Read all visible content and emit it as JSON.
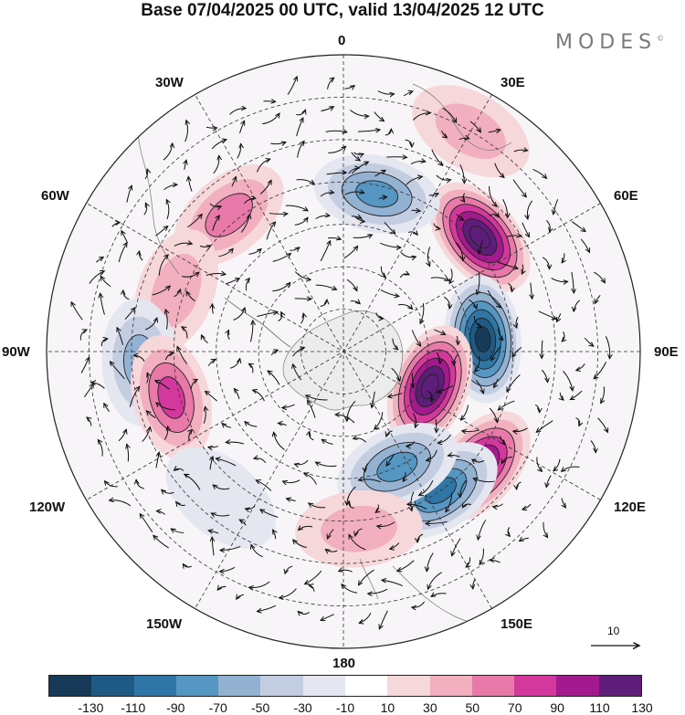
{
  "title": "Base 07/04/2025 00 UTC, valid 13/04/2025 12 UTC",
  "brand": "MODES",
  "brand_mark": "©",
  "longitude_labels": {
    "lon_0": "0",
    "lon_30e": "30E",
    "lon_60e": "60E",
    "lon_90e": "90E",
    "lon_120e": "120E",
    "lon_150e": "150E",
    "lon_180": "180",
    "lon_150w": "150W",
    "lon_120w": "120W",
    "lon_90w": "90W",
    "lon_60w": "60W",
    "lon_30w": "30W"
  },
  "reference_vector": "10",
  "colorbar": {
    "ticks": [
      "-130",
      "-110",
      "-90",
      "-70",
      "-50",
      "-30",
      "-10",
      "10",
      "30",
      "50",
      "70",
      "90",
      "110",
      "130"
    ],
    "colors": [
      "#173a58",
      "#1f5a85",
      "#2f76a6",
      "#5596c2",
      "#93b2d2",
      "#c3cde2",
      "#e4e6f0",
      "#ffffff",
      "#f6d7da",
      "#f1afbf",
      "#e879a9",
      "#d3389c",
      "#a31a8e",
      "#5e1d7a"
    ]
  },
  "map": {
    "projection": "south polar stereographic",
    "land_color": "#f0f0f0",
    "anomaly_centers": [
      {
        "lon": 50,
        "lat": -48,
        "value": 140
      },
      {
        "lon": 85,
        "lat": -57,
        "value": -130
      },
      {
        "lon": 112,
        "lat": -68,
        "value": 130
      },
      {
        "lon": 130,
        "lat": -48,
        "value": 110
      },
      {
        "lon": 145,
        "lat": -50,
        "value": -90
      },
      {
        "lon": 155,
        "lat": -60,
        "value": -85
      },
      {
        "lon": 12,
        "lat": -52,
        "value": -80
      },
      {
        "lon": -40,
        "lat": -48,
        "value": 50
      },
      {
        "lon": -70,
        "lat": -48,
        "value": 45
      },
      {
        "lon": -93,
        "lat": -42,
        "value": -50
      },
      {
        "lon": -105,
        "lat": -48,
        "value": 70
      },
      {
        "lon": -140,
        "lat": -45,
        "value": -25
      },
      {
        "lon": 175,
        "lat": -48,
        "value": 40
      },
      {
        "lon": 30,
        "lat": -30,
        "value": 30
      }
    ]
  }
}
